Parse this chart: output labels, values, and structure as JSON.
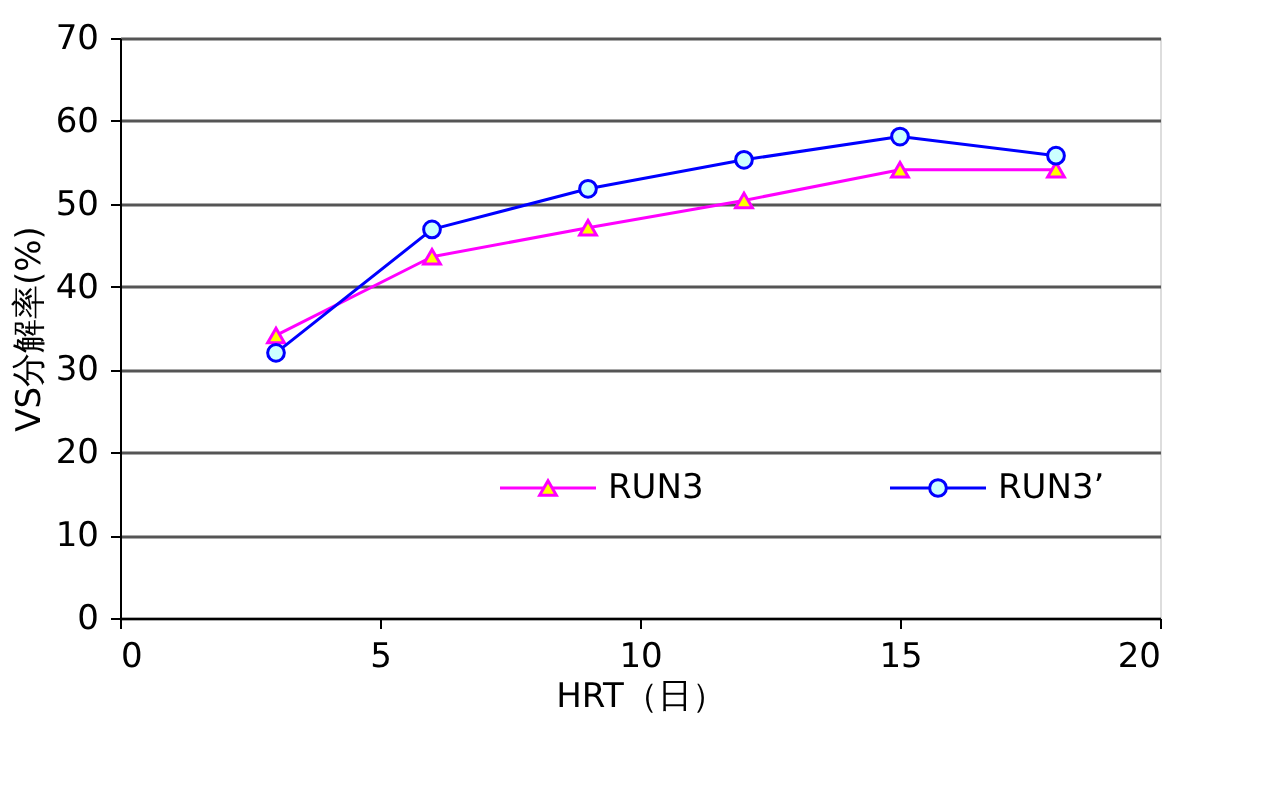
{
  "chart_data": {
    "type": "line",
    "xlabel": "HRT（日）",
    "ylabel": "VS分解率(%)",
    "x": [
      3,
      6,
      9,
      12,
      15,
      18
    ],
    "series": [
      {
        "name": "RUN3",
        "color": "#ff00ff",
        "marker": "triangle",
        "values": [
          34.1,
          43.6,
          47.1,
          50.4,
          54.1,
          54.1
        ]
      },
      {
        "name": "RUN3’",
        "color": "#0000ff",
        "marker": "circle",
        "values": [
          32.0,
          46.9,
          51.8,
          55.3,
          58.1,
          55.8
        ]
      }
    ],
    "xlim": [
      0,
      20
    ],
    "xticks": [
      0,
      5,
      10,
      15,
      20
    ],
    "ylim": [
      0,
      70
    ],
    "yticks": [
      0,
      10,
      20,
      30,
      40,
      50,
      60,
      70
    ],
    "grid": "y",
    "legend": "bottom right",
    "line_style": "solid"
  }
}
